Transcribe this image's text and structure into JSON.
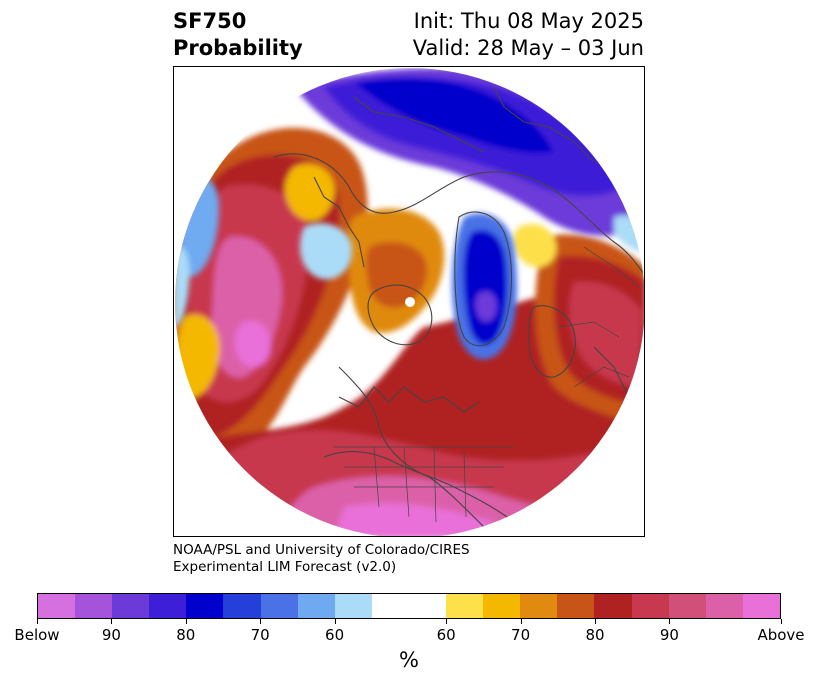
{
  "header": {
    "variable": "SF750",
    "product": "Probability",
    "init": "Init: Thu 08 May 2025",
    "valid": "Valid: 28 May – 03 Jun"
  },
  "credit": {
    "line1": "NOAA/PSL and University of Colorado/CIRES",
    "line2": "Experimental LIM Forecast (v2.0)"
  },
  "colorbar": {
    "colors": [
      "#d66fe0",
      "#a653dc",
      "#6c3ad9",
      "#3d1fd8",
      "#0000cc",
      "#2440d8",
      "#4a72e6",
      "#6faaf0",
      "#aadcf8",
      "#ffffff",
      "#ffffff",
      "#fde04a",
      "#f5b800",
      "#e08a10",
      "#c85418",
      "#b02222",
      "#c8384e",
      "#d0507a",
      "#dc60a8",
      "#e870d8"
    ],
    "tick_labels": [
      "Below",
      "90",
      "80",
      "70",
      "60",
      "60",
      "70",
      "80",
      "90",
      "Above"
    ],
    "unit": "%"
  },
  "map": {
    "projection": "polar stereographic (north pole)",
    "features": [
      "coastlines",
      "country borders",
      "US state borders"
    ]
  }
}
